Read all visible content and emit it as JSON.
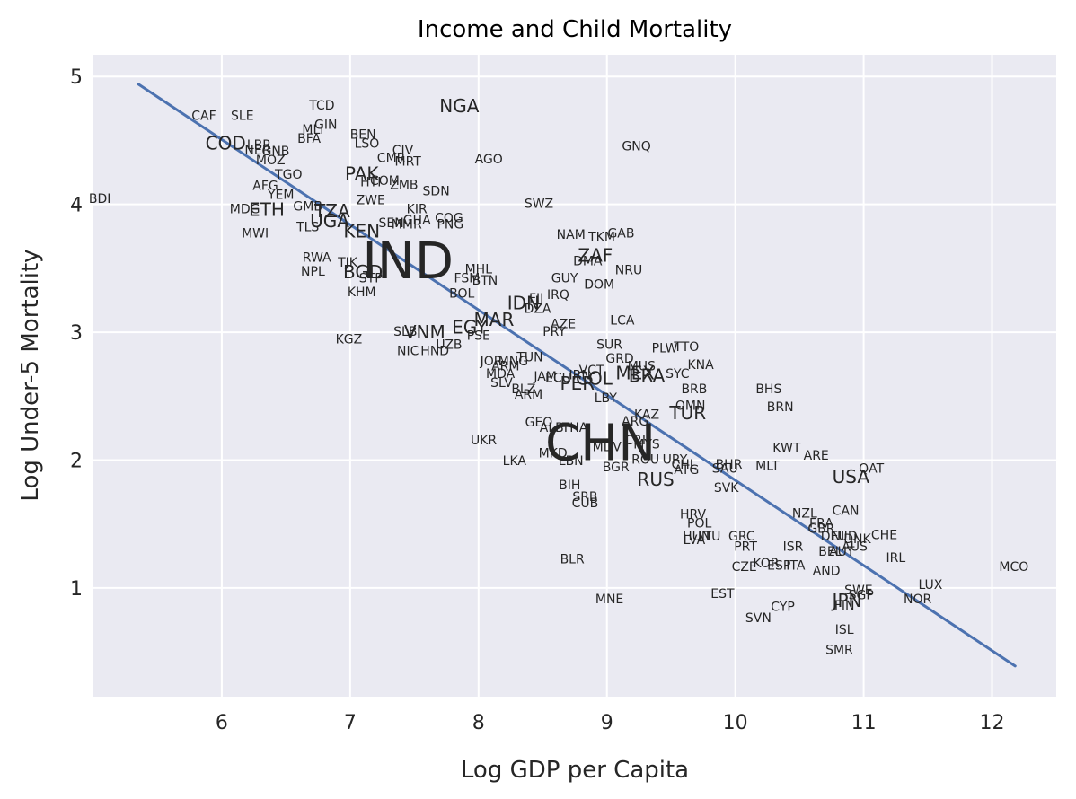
{
  "chart_data": {
    "type": "scatter",
    "title": "Income and Child Mortality",
    "xlabel": "Log GDP per Capita",
    "ylabel": "Log Under-5 Mortality",
    "xlim": [
      5.0,
      12.5
    ],
    "ylim": [
      0.15,
      5.17
    ],
    "xticks": [
      6,
      7,
      8,
      9,
      10,
      11,
      12
    ],
    "yticks": [
      1,
      2,
      3,
      4,
      5
    ],
    "grid": true,
    "fit_line": {
      "x": [
        5.35,
        12.18
      ],
      "y": [
        4.94,
        0.39
      ]
    },
    "points": [
      {
        "label": "BDI",
        "x": 5.05,
        "y": 4.04,
        "size": 1
      },
      {
        "label": "CAF",
        "x": 5.86,
        "y": 4.69,
        "size": 1
      },
      {
        "label": "SLE",
        "x": 6.16,
        "y": 4.69,
        "size": 1
      },
      {
        "label": "COD",
        "x": 6.03,
        "y": 4.48,
        "size": 2
      },
      {
        "label": "LBR",
        "x": 6.29,
        "y": 4.46,
        "size": 1
      },
      {
        "label": "NER",
        "x": 6.28,
        "y": 4.42,
        "size": 1
      },
      {
        "label": "GNB",
        "x": 6.42,
        "y": 4.41,
        "size": 1
      },
      {
        "label": "MOZ",
        "x": 6.38,
        "y": 4.34,
        "size": 1
      },
      {
        "label": "TGO",
        "x": 6.52,
        "y": 4.23,
        "size": 1
      },
      {
        "label": "AFG",
        "x": 6.34,
        "y": 4.14,
        "size": 1
      },
      {
        "label": "YEM",
        "x": 6.46,
        "y": 4.07,
        "size": 1
      },
      {
        "label": "MDG",
        "x": 6.18,
        "y": 3.96,
        "size": 1
      },
      {
        "label": "ETH",
        "x": 6.35,
        "y": 3.96,
        "size": 2
      },
      {
        "label": "GMB",
        "x": 6.67,
        "y": 3.98,
        "size": 1
      },
      {
        "label": "TZA",
        "x": 6.86,
        "y": 3.95,
        "size": 2
      },
      {
        "label": "UGA",
        "x": 6.84,
        "y": 3.87,
        "size": 2
      },
      {
        "label": "TLS",
        "x": 6.67,
        "y": 3.82,
        "size": 1
      },
      {
        "label": "MWI",
        "x": 6.26,
        "y": 3.77,
        "size": 1
      },
      {
        "label": "TCD",
        "x": 6.78,
        "y": 4.77,
        "size": 1
      },
      {
        "label": "GIN",
        "x": 6.81,
        "y": 4.62,
        "size": 1
      },
      {
        "label": "MLI",
        "x": 6.71,
        "y": 4.58,
        "size": 1
      },
      {
        "label": "BFA",
        "x": 6.68,
        "y": 4.51,
        "size": 1
      },
      {
        "label": "BEN",
        "x": 7.1,
        "y": 4.54,
        "size": 1
      },
      {
        "label": "LSO",
        "x": 7.13,
        "y": 4.47,
        "size": 1
      },
      {
        "label": "CIV",
        "x": 7.41,
        "y": 4.42,
        "size": 1
      },
      {
        "label": "CMR",
        "x": 7.32,
        "y": 4.36,
        "size": 1
      },
      {
        "label": "MRT",
        "x": 7.45,
        "y": 4.33,
        "size": 1
      },
      {
        "label": "PAK",
        "x": 7.09,
        "y": 4.24,
        "size": 2
      },
      {
        "label": "HTI",
        "x": 7.16,
        "y": 4.17,
        "size": 1
      },
      {
        "label": "COM",
        "x": 7.27,
        "y": 4.18,
        "size": 1
      },
      {
        "label": "ZMB",
        "x": 7.42,
        "y": 4.15,
        "size": 1
      },
      {
        "label": "SDN",
        "x": 7.67,
        "y": 4.1,
        "size": 1
      },
      {
        "label": "ZWE",
        "x": 7.16,
        "y": 4.03,
        "size": 1
      },
      {
        "label": "KIR",
        "x": 7.52,
        "y": 3.96,
        "size": 1
      },
      {
        "label": "SEN",
        "x": 7.32,
        "y": 3.85,
        "size": 1
      },
      {
        "label": "GHA",
        "x": 7.52,
        "y": 3.87,
        "size": 1
      },
      {
        "label": "MMR",
        "x": 7.44,
        "y": 3.84,
        "size": 1
      },
      {
        "label": "COG",
        "x": 7.77,
        "y": 3.89,
        "size": 1
      },
      {
        "label": "PNG",
        "x": 7.78,
        "y": 3.84,
        "size": 1
      },
      {
        "label": "KEN",
        "x": 7.09,
        "y": 3.79,
        "size": 2
      },
      {
        "label": "NGA",
        "x": 7.85,
        "y": 4.77,
        "size": 2
      },
      {
        "label": "AGO",
        "x": 8.08,
        "y": 4.35,
        "size": 1
      },
      {
        "label": "GNQ",
        "x": 9.23,
        "y": 4.45,
        "size": 1
      },
      {
        "label": "SWZ",
        "x": 8.47,
        "y": 4.0,
        "size": 1
      },
      {
        "label": "IND",
        "x": 7.45,
        "y": 3.55,
        "size": 4
      },
      {
        "label": "RWA",
        "x": 6.74,
        "y": 3.58,
        "size": 1
      },
      {
        "label": "TJK",
        "x": 6.98,
        "y": 3.54,
        "size": 1
      },
      {
        "label": "NPL",
        "x": 6.71,
        "y": 3.47,
        "size": 1
      },
      {
        "label": "BGD",
        "x": 7.1,
        "y": 3.47,
        "size": 2
      },
      {
        "label": "STP",
        "x": 7.16,
        "y": 3.42,
        "size": 1
      },
      {
        "label": "KHM",
        "x": 7.09,
        "y": 3.31,
        "size": 1
      },
      {
        "label": "MHL",
        "x": 8.0,
        "y": 3.49,
        "size": 1
      },
      {
        "label": "FSM",
        "x": 7.91,
        "y": 3.42,
        "size": 1
      },
      {
        "label": "BTN",
        "x": 8.05,
        "y": 3.4,
        "size": 1
      },
      {
        "label": "BOL",
        "x": 7.87,
        "y": 3.3,
        "size": 1
      },
      {
        "label": "NAM",
        "x": 8.72,
        "y": 3.76,
        "size": 1
      },
      {
        "label": "GAB",
        "x": 9.11,
        "y": 3.77,
        "size": 1
      },
      {
        "label": "TKM",
        "x": 8.96,
        "y": 3.74,
        "size": 1
      },
      {
        "label": "ZAF",
        "x": 8.91,
        "y": 3.6,
        "size": 2
      },
      {
        "label": "DMA",
        "x": 8.85,
        "y": 3.55,
        "size": 1
      },
      {
        "label": "NRU",
        "x": 9.17,
        "y": 3.48,
        "size": 1
      },
      {
        "label": "GUY",
        "x": 8.67,
        "y": 3.42,
        "size": 1
      },
      {
        "label": "DOM",
        "x": 8.94,
        "y": 3.37,
        "size": 1
      },
      {
        "label": "IRQ",
        "x": 8.62,
        "y": 3.29,
        "size": 1
      },
      {
        "label": "IDN",
        "x": 8.35,
        "y": 3.23,
        "size": 2
      },
      {
        "label": "FJI",
        "x": 8.45,
        "y": 3.26,
        "size": 1
      },
      {
        "label": "DZA",
        "x": 8.46,
        "y": 3.18,
        "size": 1
      },
      {
        "label": "LCA",
        "x": 9.12,
        "y": 3.09,
        "size": 1
      },
      {
        "label": "AZE",
        "x": 8.66,
        "y": 3.06,
        "size": 1
      },
      {
        "label": "PRY",
        "x": 8.59,
        "y": 3.0,
        "size": 1
      },
      {
        "label": "EGY",
        "x": 7.93,
        "y": 3.04,
        "size": 2
      },
      {
        "label": "MAR",
        "x": 8.12,
        "y": 3.1,
        "size": 2
      },
      {
        "label": "PSE",
        "x": 8.0,
        "y": 2.97,
        "size": 1
      },
      {
        "label": "SLB",
        "x": 7.43,
        "y": 3.0,
        "size": 1
      },
      {
        "label": "VNM",
        "x": 7.58,
        "y": 3.0,
        "size": 2
      },
      {
        "label": "UZB",
        "x": 7.77,
        "y": 2.9,
        "size": 1
      },
      {
        "label": "NIC",
        "x": 7.45,
        "y": 2.85,
        "size": 1
      },
      {
        "label": "HND",
        "x": 7.66,
        "y": 2.85,
        "size": 1
      },
      {
        "label": "KGZ",
        "x": 6.99,
        "y": 2.94,
        "size": 1
      },
      {
        "label": "SUR",
        "x": 9.02,
        "y": 2.9,
        "size": 1
      },
      {
        "label": "PLW",
        "x": 9.45,
        "y": 2.87,
        "size": 1
      },
      {
        "label": "TTO",
        "x": 9.62,
        "y": 2.88,
        "size": 1
      },
      {
        "label": "GRD",
        "x": 9.1,
        "y": 2.79,
        "size": 1
      },
      {
        "label": "KNA",
        "x": 9.73,
        "y": 2.74,
        "size": 1
      },
      {
        "label": "MUS",
        "x": 9.27,
        "y": 2.73,
        "size": 1
      },
      {
        "label": "MEX",
        "x": 9.22,
        "y": 2.68,
        "size": 2
      },
      {
        "label": "BRA",
        "x": 9.31,
        "y": 2.66,
        "size": 2
      },
      {
        "label": "SYC",
        "x": 9.55,
        "y": 2.67,
        "size": 1
      },
      {
        "label": "JOR",
        "x": 8.1,
        "y": 2.77,
        "size": 1
      },
      {
        "label": "MNG",
        "x": 8.27,
        "y": 2.77,
        "size": 1
      },
      {
        "label": "TUN",
        "x": 8.4,
        "y": 2.8,
        "size": 1
      },
      {
        "label": "ARM",
        "x": 8.21,
        "y": 2.73,
        "size": 1
      },
      {
        "label": "MDA",
        "x": 8.17,
        "y": 2.67,
        "size": 1
      },
      {
        "label": "SLV",
        "x": 8.18,
        "y": 2.6,
        "size": 1
      },
      {
        "label": "JAM",
        "x": 8.52,
        "y": 2.65,
        "size": 1
      },
      {
        "label": "ECU",
        "x": 8.62,
        "y": 2.64,
        "size": 1
      },
      {
        "label": "IRN",
        "x": 8.79,
        "y": 2.66,
        "size": 1
      },
      {
        "label": "VCT",
        "x": 8.88,
        "y": 2.7,
        "size": 1
      },
      {
        "label": "COL",
        "x": 8.9,
        "y": 2.64,
        "size": 2
      },
      {
        "label": "PER",
        "x": 8.77,
        "y": 2.6,
        "size": 2
      },
      {
        "label": "BLZ",
        "x": 8.35,
        "y": 2.55,
        "size": 1
      },
      {
        "label": "ARM",
        "x": 8.39,
        "y": 2.51,
        "size": 1
      },
      {
        "label": "LBY",
        "x": 8.99,
        "y": 2.48,
        "size": 1
      },
      {
        "label": "BRB",
        "x": 9.68,
        "y": 2.55,
        "size": 1
      },
      {
        "label": "BHS",
        "x": 10.26,
        "y": 2.55,
        "size": 1
      },
      {
        "label": "OMN",
        "x": 9.65,
        "y": 2.42,
        "size": 1
      },
      {
        "label": "TUR",
        "x": 9.63,
        "y": 2.37,
        "size": 2
      },
      {
        "label": "BRN",
        "x": 10.35,
        "y": 2.41,
        "size": 1
      },
      {
        "label": "KAZ",
        "x": 9.31,
        "y": 2.35,
        "size": 1
      },
      {
        "label": "ARG",
        "x": 9.22,
        "y": 2.3,
        "size": 1
      },
      {
        "label": "CRI",
        "x": 9.22,
        "y": 2.15,
        "size": 1
      },
      {
        "label": "GEO",
        "x": 8.47,
        "y": 2.29,
        "size": 1
      },
      {
        "label": "ALB",
        "x": 8.57,
        "y": 2.25,
        "size": 1
      },
      {
        "label": "THA",
        "x": 8.75,
        "y": 2.25,
        "size": 1
      },
      {
        "label": "UKR",
        "x": 8.04,
        "y": 2.15,
        "size": 1
      },
      {
        "label": "CHN",
        "x": 8.95,
        "y": 2.13,
        "size": 4
      },
      {
        "label": "MYS",
        "x": 9.31,
        "y": 2.12,
        "size": 1
      },
      {
        "label": "MKD",
        "x": 8.58,
        "y": 2.05,
        "size": 1
      },
      {
        "label": "MDV",
        "x": 9.0,
        "y": 2.1,
        "size": 1
      },
      {
        "label": "LKA",
        "x": 8.28,
        "y": 1.99,
        "size": 1
      },
      {
        "label": "LBN",
        "x": 8.72,
        "y": 1.99,
        "size": 1
      },
      {
        "label": "BGR",
        "x": 9.07,
        "y": 1.94,
        "size": 1
      },
      {
        "label": "ROU",
        "x": 9.3,
        "y": 2.0,
        "size": 1
      },
      {
        "label": "URY",
        "x": 9.53,
        "y": 2.0,
        "size": 1
      },
      {
        "label": "CHL",
        "x": 9.6,
        "y": 1.96,
        "size": 1
      },
      {
        "label": "ATG",
        "x": 9.62,
        "y": 1.92,
        "size": 1
      },
      {
        "label": "BHR",
        "x": 9.95,
        "y": 1.96,
        "size": 1
      },
      {
        "label": "SAU",
        "x": 9.92,
        "y": 1.93,
        "size": 1
      },
      {
        "label": "MLT",
        "x": 10.25,
        "y": 1.95,
        "size": 1
      },
      {
        "label": "KWT",
        "x": 10.4,
        "y": 2.09,
        "size": 1
      },
      {
        "label": "ARE",
        "x": 10.63,
        "y": 2.03,
        "size": 1
      },
      {
        "label": "RUS",
        "x": 9.38,
        "y": 1.85,
        "size": 2
      },
      {
        "label": "SVK",
        "x": 9.93,
        "y": 1.78,
        "size": 1
      },
      {
        "label": "USA",
        "x": 10.9,
        "y": 1.87,
        "size": 2
      },
      {
        "label": "QAT",
        "x": 11.06,
        "y": 1.93,
        "size": 1
      },
      {
        "label": "BIH",
        "x": 8.71,
        "y": 1.8,
        "size": 1
      },
      {
        "label": "SRB",
        "x": 8.83,
        "y": 1.71,
        "size": 1
      },
      {
        "label": "CUB",
        "x": 8.83,
        "y": 1.66,
        "size": 1
      },
      {
        "label": "NZL",
        "x": 10.54,
        "y": 1.58,
        "size": 1
      },
      {
        "label": "CAN",
        "x": 10.86,
        "y": 1.6,
        "size": 1
      },
      {
        "label": "HRV",
        "x": 9.67,
        "y": 1.57,
        "size": 1
      },
      {
        "label": "POL",
        "x": 9.72,
        "y": 1.5,
        "size": 1
      },
      {
        "label": "FRA",
        "x": 10.67,
        "y": 1.5,
        "size": 1
      },
      {
        "label": "GBR",
        "x": 10.67,
        "y": 1.46,
        "size": 1
      },
      {
        "label": "HUN",
        "x": 9.7,
        "y": 1.4,
        "size": 1
      },
      {
        "label": "LTU",
        "x": 9.8,
        "y": 1.4,
        "size": 1
      },
      {
        "label": "LVA",
        "x": 9.68,
        "y": 1.37,
        "size": 1
      },
      {
        "label": "GRC",
        "x": 10.05,
        "y": 1.4,
        "size": 1
      },
      {
        "label": "DEU",
        "x": 10.77,
        "y": 1.4,
        "size": 1
      },
      {
        "label": "NLD",
        "x": 10.85,
        "y": 1.4,
        "size": 1
      },
      {
        "label": "DNK",
        "x": 10.95,
        "y": 1.38,
        "size": 1
      },
      {
        "label": "AUS",
        "x": 10.93,
        "y": 1.32,
        "size": 1
      },
      {
        "label": "CHE",
        "x": 11.16,
        "y": 1.41,
        "size": 1
      },
      {
        "label": "PRT",
        "x": 10.08,
        "y": 1.32,
        "size": 1
      },
      {
        "label": "ISR",
        "x": 10.45,
        "y": 1.32,
        "size": 1
      },
      {
        "label": "BEL",
        "x": 10.74,
        "y": 1.28,
        "size": 1
      },
      {
        "label": "AUT",
        "x": 10.83,
        "y": 1.28,
        "size": 1
      },
      {
        "label": "IRL",
        "x": 11.25,
        "y": 1.23,
        "size": 1
      },
      {
        "label": "BLR",
        "x": 8.73,
        "y": 1.22,
        "size": 1
      },
      {
        "label": "CZE",
        "x": 10.07,
        "y": 1.16,
        "size": 1
      },
      {
        "label": "KOR",
        "x": 10.24,
        "y": 1.19,
        "size": 1
      },
      {
        "label": "ESP",
        "x": 10.34,
        "y": 1.17,
        "size": 1
      },
      {
        "label": "ITA",
        "x": 10.47,
        "y": 1.17,
        "size": 1
      },
      {
        "label": "AND",
        "x": 10.71,
        "y": 1.13,
        "size": 1
      },
      {
        "label": "MCO",
        "x": 12.17,
        "y": 1.16,
        "size": 1
      },
      {
        "label": "LUX",
        "x": 11.52,
        "y": 1.02,
        "size": 1
      },
      {
        "label": "MNE",
        "x": 9.02,
        "y": 0.91,
        "size": 1
      },
      {
        "label": "EST",
        "x": 9.9,
        "y": 0.95,
        "size": 1
      },
      {
        "label": "SWE",
        "x": 10.96,
        "y": 0.98,
        "size": 1
      },
      {
        "label": "NOR",
        "x": 11.42,
        "y": 0.91,
        "size": 1
      },
      {
        "label": "CYP",
        "x": 10.37,
        "y": 0.85,
        "size": 1
      },
      {
        "label": "JPN",
        "x": 10.87,
        "y": 0.9,
        "size": 2
      },
      {
        "label": "SGP",
        "x": 10.98,
        "y": 0.94,
        "size": 1
      },
      {
        "label": "FIN",
        "x": 10.85,
        "y": 0.86,
        "size": 1
      },
      {
        "label": "SVN",
        "x": 10.18,
        "y": 0.76,
        "size": 1
      },
      {
        "label": "ISL",
        "x": 10.85,
        "y": 0.67,
        "size": 1
      },
      {
        "label": "SMR",
        "x": 10.81,
        "y": 0.51,
        "size": 1
      }
    ]
  }
}
